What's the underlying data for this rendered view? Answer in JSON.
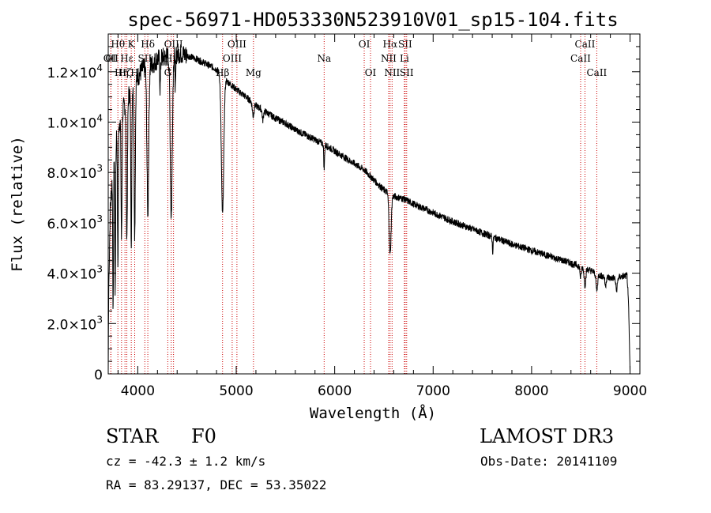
{
  "chart_data": {
    "type": "line",
    "title": "spec-56971-HD053330N523910V01_sp15-104.fits",
    "xlabel": "Wavelength (Å)",
    "ylabel": "Flux (relative)",
    "xlim": [
      3700,
      9100
    ],
    "ylim": [
      0,
      13500
    ],
    "x_ticks": [
      {
        "value": 4000,
        "label": "4000"
      },
      {
        "value": 5000,
        "label": "5000"
      },
      {
        "value": 6000,
        "label": "6000"
      },
      {
        "value": 7000,
        "label": "7000"
      },
      {
        "value": 8000,
        "label": "8000"
      },
      {
        "value": 9000,
        "label": "9000"
      }
    ],
    "y_ticks": [
      {
        "value": 0,
        "mant": "0",
        "exp": ""
      },
      {
        "value": 2000,
        "mant": "2.0×10",
        "exp": "3"
      },
      {
        "value": 4000,
        "mant": "4.0×10",
        "exp": "3"
      },
      {
        "value": 6000,
        "mant": "6.0×10",
        "exp": "3"
      },
      {
        "value": 8000,
        "mant": "8.0×10",
        "exp": "3"
      },
      {
        "value": 10000,
        "mant": "1.0×10",
        "exp": "4"
      },
      {
        "value": 12000,
        "mant": "1.2×10",
        "exp": "4"
      }
    ],
    "continuum": [
      [
        3700,
        0
      ],
      [
        3705,
        3300
      ],
      [
        3720,
        6500
      ],
      [
        3760,
        9000
      ],
      [
        3800,
        9800
      ],
      [
        3850,
        10500
      ],
      [
        3900,
        11000
      ],
      [
        3950,
        11500
      ],
      [
        4000,
        11800
      ],
      [
        4050,
        12100
      ],
      [
        4100,
        12200
      ],
      [
        4150,
        12300
      ],
      [
        4200,
        12500
      ],
      [
        4300,
        12600
      ],
      [
        4400,
        12750
      ],
      [
        4500,
        12650
      ],
      [
        4600,
        12500
      ],
      [
        4700,
        12300
      ],
      [
        4800,
        12100
      ],
      [
        4900,
        11650
      ],
      [
        5000,
        11300
      ],
      [
        5100,
        11000
      ],
      [
        5200,
        10650
      ],
      [
        5300,
        10400
      ],
      [
        5400,
        10150
      ],
      [
        5500,
        9950
      ],
      [
        5600,
        9700
      ],
      [
        5700,
        9500
      ],
      [
        5800,
        9300
      ],
      [
        5900,
        9100
      ],
      [
        6000,
        8850
      ],
      [
        6100,
        8600
      ],
      [
        6200,
        8350
      ],
      [
        6300,
        8100
      ],
      [
        6400,
        7700
      ],
      [
        6500,
        7300
      ],
      [
        6600,
        7050
      ],
      [
        6700,
        6950
      ],
      [
        6800,
        6750
      ],
      [
        7000,
        6400
      ],
      [
        7200,
        6050
      ],
      [
        7400,
        5750
      ],
      [
        7600,
        5450
      ],
      [
        7800,
        5150
      ],
      [
        8000,
        4900
      ],
      [
        8200,
        4650
      ],
      [
        8400,
        4400
      ],
      [
        8500,
        4250
      ],
      [
        8600,
        4100
      ],
      [
        8700,
        3900
      ],
      [
        8800,
        3800
      ],
      [
        8900,
        3850
      ],
      [
        8970,
        3900
      ],
      [
        8985,
        2800
      ],
      [
        9000,
        100
      ]
    ],
    "absorption_lines": [
      {
        "center": 3750,
        "depth": 6000,
        "width": 4
      },
      {
        "center": 3771,
        "depth": 6000,
        "width": 4
      },
      {
        "center": 3798,
        "depth": 5500,
        "width": 4
      },
      {
        "center": 3835,
        "depth": 5000,
        "width": 5
      },
      {
        "center": 3889,
        "depth": 5500,
        "width": 6
      },
      {
        "center": 3934,
        "depth": 6000,
        "width": 5
      },
      {
        "center": 3969,
        "depth": 6000,
        "width": 6
      },
      {
        "center": 4102,
        "depth": 5800,
        "width": 9
      },
      {
        "center": 4227,
        "depth": 1200,
        "width": 4
      },
      {
        "center": 4340,
        "depth": 6400,
        "width": 10
      },
      {
        "center": 4383,
        "depth": 1500,
        "width": 4
      },
      {
        "center": 4861,
        "depth": 5500,
        "width": 12
      },
      {
        "center": 5172,
        "depth": 500,
        "width": 8
      },
      {
        "center": 5270,
        "depth": 400,
        "width": 6
      },
      {
        "center": 5893,
        "depth": 1000,
        "width": 4
      },
      {
        "center": 6563,
        "depth": 2400,
        "width": 10
      },
      {
        "center": 7605,
        "depth": 600,
        "width": 4
      },
      {
        "center": 8498,
        "depth": 450,
        "width": 6
      },
      {
        "center": 8542,
        "depth": 650,
        "width": 8
      },
      {
        "center": 8662,
        "depth": 650,
        "width": 8
      },
      {
        "center": 8750,
        "depth": 350,
        "width": 6
      },
      {
        "center": 8863,
        "depth": 500,
        "width": 8
      }
    ],
    "noise_amplitude": 140,
    "line_markers": [
      {
        "label": "OII",
        "wavelength": 3727,
        "row": 2
      },
      {
        "label": "Hθ",
        "wavelength": 3798,
        "row": 1
      },
      {
        "label": "OI",
        "wavelength": 3727,
        "row": 2
      },
      {
        "label": "Hη",
        "wavelength": 3835,
        "row": 3
      },
      {
        "label": "Hε",
        "wavelength": 3889,
        "row": 2
      },
      {
        "label": "K",
        "wavelength": 3934,
        "row": 1
      },
      {
        "label": "Hζ",
        "wavelength": 3870,
        "row": 3
      },
      {
        "label": "SII",
        "wavelength": 4072,
        "row": 2
      },
      {
        "label": "Hδ",
        "wavelength": 4102,
        "row": 1
      },
      {
        "label": "H",
        "wavelength": 3969,
        "row": 3
      },
      {
        "label": "Hγ",
        "wavelength": 4340,
        "row": 2
      },
      {
        "label": "G",
        "wavelength": 4305,
        "row": 3
      },
      {
        "label": "OIII",
        "wavelength": 4363,
        "row": 1
      },
      {
        "label": "Hβ",
        "wavelength": 4861,
        "row": 3
      },
      {
        "label": "OIII",
        "wavelength": 4959,
        "row": 2
      },
      {
        "label": "OIII",
        "wavelength": 5007,
        "row": 1
      },
      {
        "label": "Mg",
        "wavelength": 5175,
        "row": 3
      },
      {
        "label": "Na",
        "wavelength": 5893,
        "row": 2
      },
      {
        "label": "OI",
        "wavelength": 6300,
        "row": 1
      },
      {
        "label": "OI",
        "wavelength": 6364,
        "row": 3
      },
      {
        "label": "Hα",
        "wavelength": 6563,
        "row": 1
      },
      {
        "label": "NII",
        "wavelength": 6548,
        "row": 2
      },
      {
        "label": "NII",
        "wavelength": 6583,
        "row": 3
      },
      {
        "label": "SII",
        "wavelength": 6716,
        "row": 1
      },
      {
        "label": "Li",
        "wavelength": 6708,
        "row": 2
      },
      {
        "label": "SII",
        "wavelength": 6731,
        "row": 3
      },
      {
        "label": "CaII",
        "wavelength": 8542,
        "row": 1
      },
      {
        "label": "CaII",
        "wavelength": 8498,
        "row": 2
      },
      {
        "label": "CaII",
        "wavelength": 8662,
        "row": 3
      }
    ],
    "grid": false
  },
  "info": {
    "object_class": "STAR",
    "subclass": "F0",
    "survey": "LAMOST DR3",
    "redshift": "cz = -42.3 ± 1.2 km/s",
    "obs_date": "Obs-Date: 20141109",
    "coords": "RA =  83.29137, DEC =  53.35022"
  }
}
